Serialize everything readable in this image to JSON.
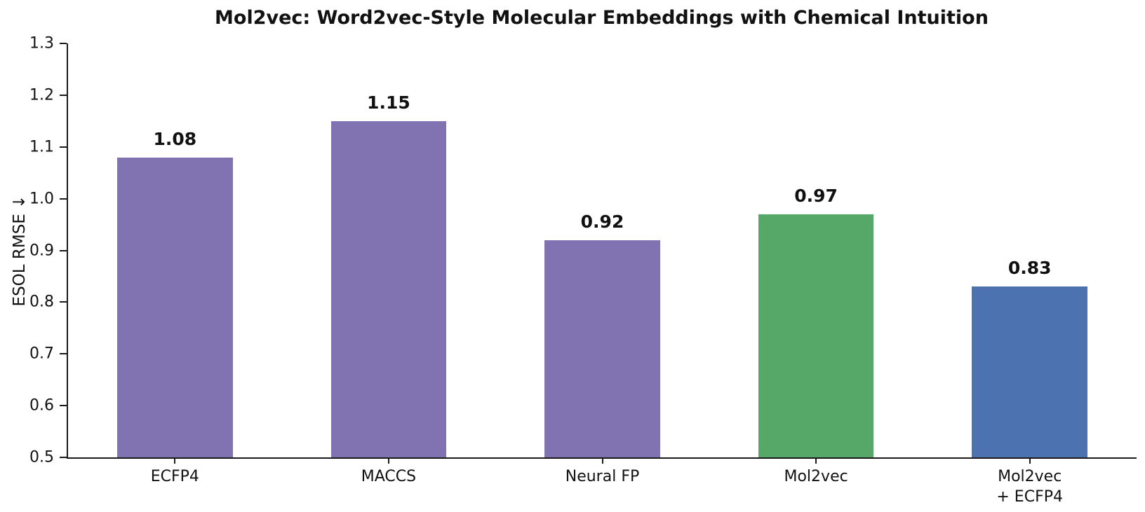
{
  "chart_data": {
    "type": "bar",
    "title": "Mol2vec: Word2vec-Style Molecular Embeddings with Chemical Intuition",
    "xlabel": "",
    "ylabel": "ESOL RMSE ↓",
    "ylim": [
      0.5,
      1.3
    ],
    "yticks": [
      0.5,
      0.6,
      0.7,
      0.8,
      0.9,
      1.0,
      1.1,
      1.2,
      1.3
    ],
    "ytick_labels": [
      "0.5",
      "0.6",
      "0.7",
      "0.8",
      "0.9",
      "1.0",
      "1.1",
      "1.2",
      "1.3"
    ],
    "categories": [
      "ECFP4",
      "MACCS",
      "Neural FP",
      "Mol2vec",
      "Mol2vec\n+ ECFP4"
    ],
    "values": [
      1.08,
      1.15,
      0.92,
      0.97,
      0.83
    ],
    "value_labels": [
      "1.08",
      "1.15",
      "0.92",
      "0.97",
      "0.83"
    ],
    "bar_colors": [
      "#8172b2",
      "#8172b2",
      "#8172b2",
      "#55a868",
      "#4c72b0"
    ],
    "bar_width_fraction": 0.54,
    "grid": false,
    "legend": false,
    "axis_color": "#1a1a1a",
    "text_color": "#111111",
    "background_color": "#ffffff"
  }
}
